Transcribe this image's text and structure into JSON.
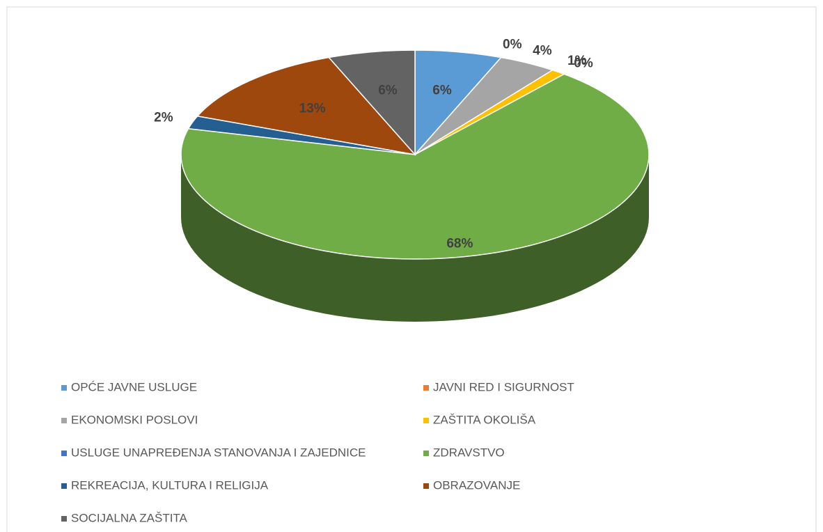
{
  "chart_data": {
    "type": "pie",
    "categories": [
      "OPĆE JAVNE USLUGE",
      "JAVNI RED I SIGURNOST",
      "EKONOMSKI POSLOVI",
      "ZAŠTITA OKOLIŠA",
      "USLUGE UNAPREĐENJA STANOVANJA I ZAJEDNICE",
      "ZDRAVSTVO",
      "REKREACIJA, KULTURA I RELIGIJA",
      "OBRAZOVANJE",
      "SOCIJALNA ZAŠTITA"
    ],
    "values": [
      6,
      0,
      4,
      1,
      0,
      68,
      2,
      13,
      6
    ],
    "value_labels": [
      "6%",
      "0%",
      "4%",
      "1%",
      "0%",
      "68%",
      "2%",
      "13%",
      "6%"
    ],
    "colors": [
      "#5b9bd5",
      "#ed7d31",
      "#a5a5a5",
      "#ffc000",
      "#4472c4",
      "#70ad47",
      "#255e91",
      "#9e480e",
      "#636363"
    ],
    "legend": "bottom"
  }
}
